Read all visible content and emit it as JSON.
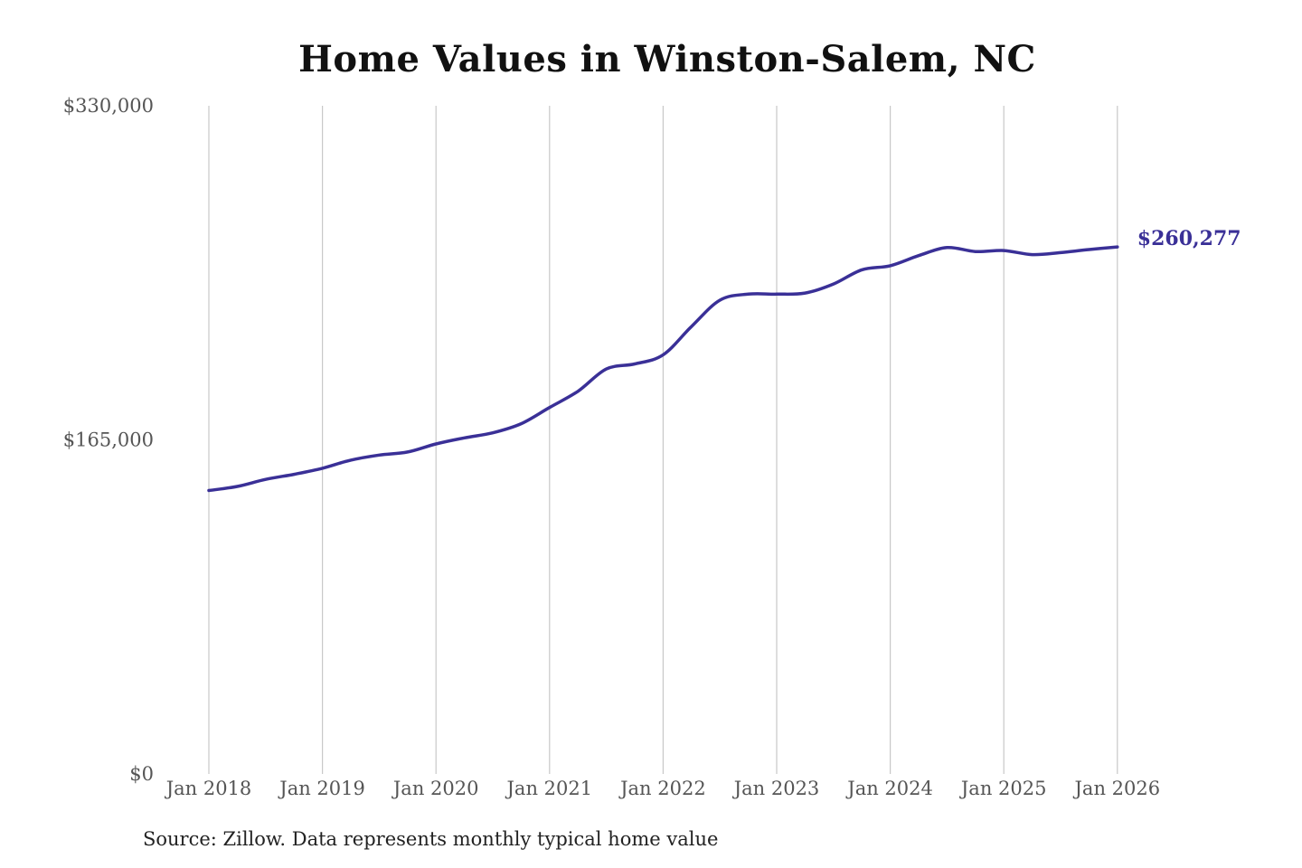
{
  "chart_data": {
    "type": "line",
    "title": "Home Values in Winston-Salem, NC",
    "source": "Source: Zillow. Data represents monthly typical home value",
    "xlabel": "",
    "ylabel": "",
    "ylim": [
      0,
      330000
    ],
    "y_ticks": [
      {
        "value": 0,
        "label": "$0"
      },
      {
        "value": 165000,
        "label": "$165,000"
      },
      {
        "value": 330000,
        "label": "$330,000"
      }
    ],
    "x_ticks": [
      "Jan 2018",
      "Jan 2019",
      "Jan 2020",
      "Jan 2021",
      "Jan 2022",
      "Jan 2023",
      "Jan 2024",
      "Jan 2025",
      "Jan 2026"
    ],
    "grid": "vertical",
    "line_color": "#3a3097",
    "end_label": "$260,277",
    "series": [
      {
        "points": [
          {
            "x": "2018-01",
            "y": 140000
          },
          {
            "x": "2018-04",
            "y": 142000
          },
          {
            "x": "2018-07",
            "y": 145500
          },
          {
            "x": "2018-10",
            "y": 148000
          },
          {
            "x": "2019-01",
            "y": 151000
          },
          {
            "x": "2019-04",
            "y": 155000
          },
          {
            "x": "2019-07",
            "y": 157500
          },
          {
            "x": "2019-10",
            "y": 159000
          },
          {
            "x": "2020-01",
            "y": 163000
          },
          {
            "x": "2020-04",
            "y": 166000
          },
          {
            "x": "2020-07",
            "y": 168500
          },
          {
            "x": "2020-10",
            "y": 173000
          },
          {
            "x": "2021-01",
            "y": 181000
          },
          {
            "x": "2021-04",
            "y": 189000
          },
          {
            "x": "2021-07",
            "y": 200000
          },
          {
            "x": "2021-10",
            "y": 202500
          },
          {
            "x": "2022-01",
            "y": 207000
          },
          {
            "x": "2022-04",
            "y": 221000
          },
          {
            "x": "2022-07",
            "y": 234000
          },
          {
            "x": "2022-10",
            "y": 237000
          },
          {
            "x": "2023-01",
            "y": 237000
          },
          {
            "x": "2023-04",
            "y": 237500
          },
          {
            "x": "2023-07",
            "y": 242000
          },
          {
            "x": "2023-10",
            "y": 249000
          },
          {
            "x": "2024-01",
            "y": 251000
          },
          {
            "x": "2024-04",
            "y": 256000
          },
          {
            "x": "2024-07",
            "y": 260000
          },
          {
            "x": "2024-10",
            "y": 258000
          },
          {
            "x": "2025-01",
            "y": 258500
          },
          {
            "x": "2025-04",
            "y": 256500
          },
          {
            "x": "2025-07",
            "y": 257500
          },
          {
            "x": "2025-10",
            "y": 259000
          },
          {
            "x": "2026-01",
            "y": 260277
          }
        ]
      }
    ]
  }
}
